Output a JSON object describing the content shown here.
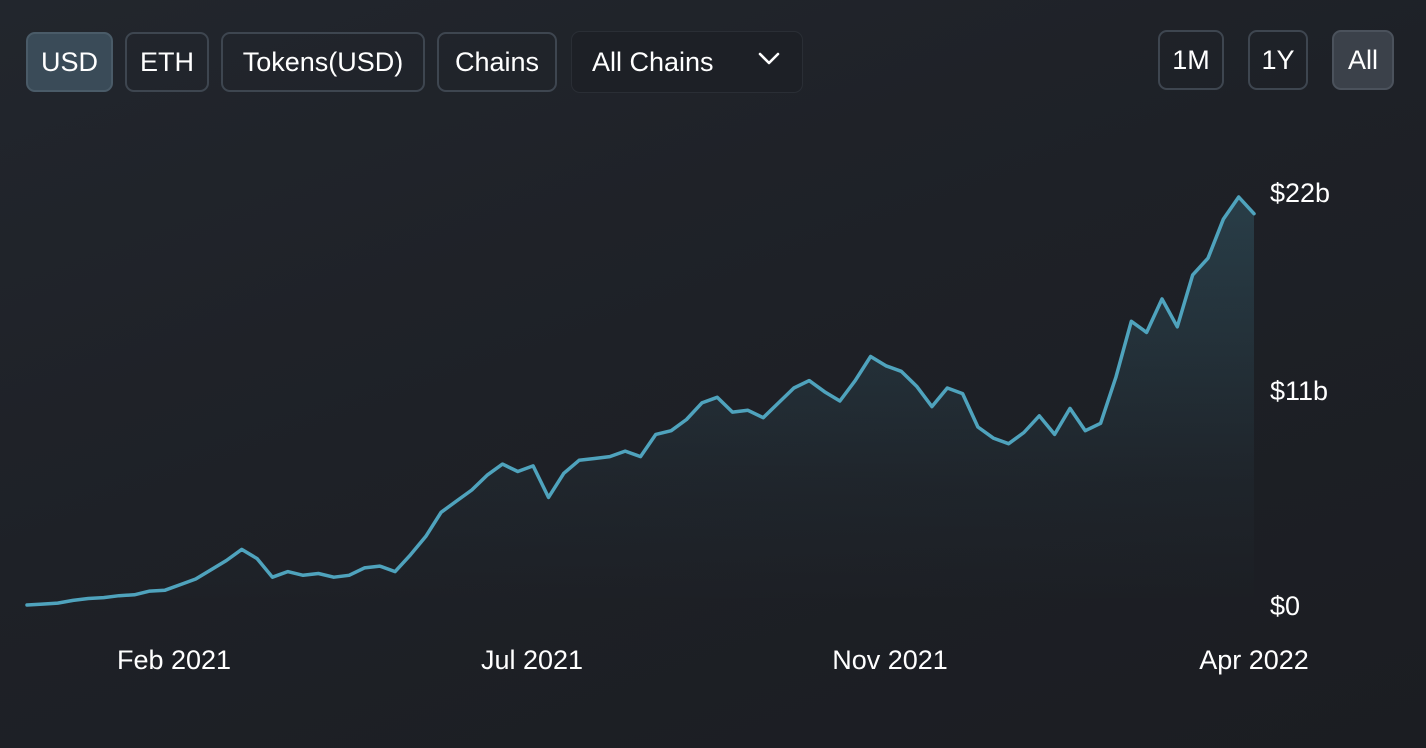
{
  "toolbar": {
    "denomination_buttons": [
      {
        "label": "USD",
        "active": true
      },
      {
        "label": "ETH",
        "active": false
      },
      {
        "label": "Tokens(USD)",
        "active": false
      },
      {
        "label": "Chains",
        "active": false
      }
    ],
    "chain_select": {
      "value": "All Chains"
    },
    "range_buttons": [
      {
        "label": "1M",
        "active": false
      },
      {
        "label": "1Y",
        "active": false
      },
      {
        "label": "All",
        "active": true
      }
    ]
  },
  "colors": {
    "line": "#4fa3bd",
    "background": "#1e2127",
    "button_border": "#3e4650",
    "active_button": "#3a4b58"
  },
  "chart_data": {
    "type": "area",
    "title": "",
    "xlabel": "",
    "ylabel": "",
    "x_ticks": [
      "Feb 2021",
      "Jul 2021",
      "Nov 2021",
      "Apr 2022"
    ],
    "y_ticks": [
      "$0",
      "$11b",
      "$22b"
    ],
    "y_tick_values": [
      0,
      11,
      22
    ],
    "ylim": [
      0,
      22
    ],
    "y_unit": "billion USD",
    "grid": false,
    "legend": "none",
    "series": [
      {
        "values": [
          0,
          0.05,
          0.1,
          0.25,
          0.35,
          0.4,
          0.5,
          0.55,
          0.75,
          0.8,
          1.1,
          1.4,
          1.9,
          2.4,
          3.0,
          2.5,
          1.5,
          1.8,
          1.6,
          1.7,
          1.5,
          1.6,
          2.0,
          2.1,
          1.8,
          2.7,
          3.7,
          5.0,
          5.6,
          6.2,
          7.0,
          7.6,
          7.2,
          7.5,
          5.8,
          7.1,
          7.8,
          7.9,
          8.0,
          8.3,
          8.0,
          9.2,
          9.4,
          10.0,
          10.9,
          11.2,
          10.4,
          10.5,
          10.1,
          10.9,
          11.7,
          12.1,
          11.5,
          11.0,
          12.1,
          13.4,
          12.9,
          12.6,
          11.8,
          10.7,
          11.7,
          11.4,
          9.6,
          9.0,
          8.7,
          9.3,
          10.2,
          9.2,
          10.6,
          9.4,
          9.8,
          12.3,
          15.3,
          14.7,
          16.5,
          15.0,
          17.8,
          18.7,
          20.8,
          22.0,
          21.1
        ]
      }
    ]
  }
}
